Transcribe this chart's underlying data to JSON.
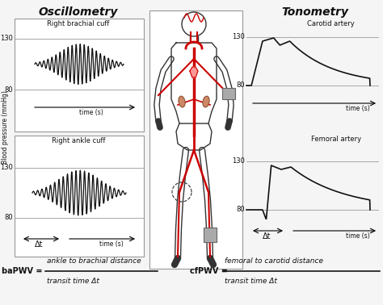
{
  "title_oscillometry": "Oscillometry",
  "title_tonometry": "Tonometry",
  "label_brachial": "Right brachial cuff",
  "label_ankle": "Right ankle cuff",
  "label_carotid": "Carotid artery",
  "label_femoral": "Femoral artery",
  "label_time": "time (s)",
  "label_bp": "Blood pressure (mmHg)",
  "label_delta_t": "Δt",
  "eq_left_pre": "baPWV = ",
  "eq_left_num": "ankle to brachial distance",
  "eq_left_den": "transit time Δt",
  "eq_right_pre": "cfPWV = ",
  "eq_right_num": "femoral to carotid distance",
  "eq_right_den": "transit time Δt",
  "bg_color": "#f5f5f5",
  "text_color": "#111111",
  "wave_color": "#111111",
  "gray_line": "#999999",
  "border_color": "#999999",
  "red_color": "#cc0000"
}
